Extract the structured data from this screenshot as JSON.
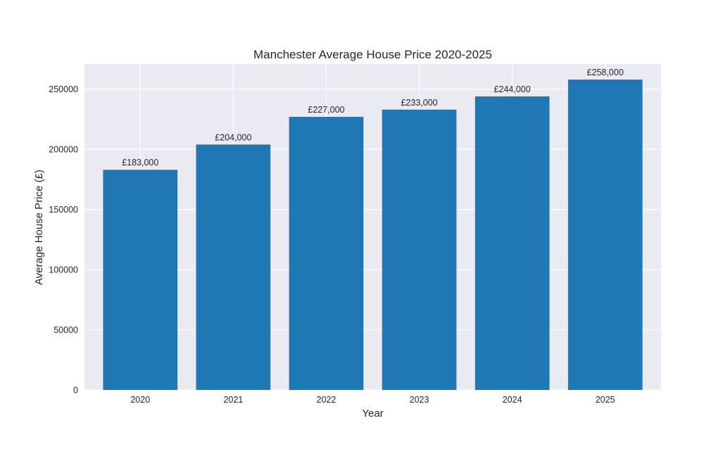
{
  "chart_data": {
    "type": "bar",
    "title": "Manchester Average House Price 2020-2025",
    "xlabel": "Year",
    "ylabel": "Average House Price (£)",
    "categories": [
      "2020",
      "2021",
      "2022",
      "2023",
      "2024",
      "2025"
    ],
    "values": [
      183000,
      204000,
      227000,
      233000,
      244000,
      258000
    ],
    "data_labels": [
      "£183,000",
      "£204,000",
      "£227,000",
      "£233,000",
      "£244,000",
      "£258,000"
    ],
    "yticks": [
      0,
      50000,
      100000,
      150000,
      200000,
      250000
    ],
    "ylim": [
      0,
      270900
    ],
    "grid": true,
    "colors": {
      "bar": "#1f77b4",
      "plot_background": "#eaeaf2",
      "grid": "#ffffff",
      "text": "#262626"
    }
  }
}
